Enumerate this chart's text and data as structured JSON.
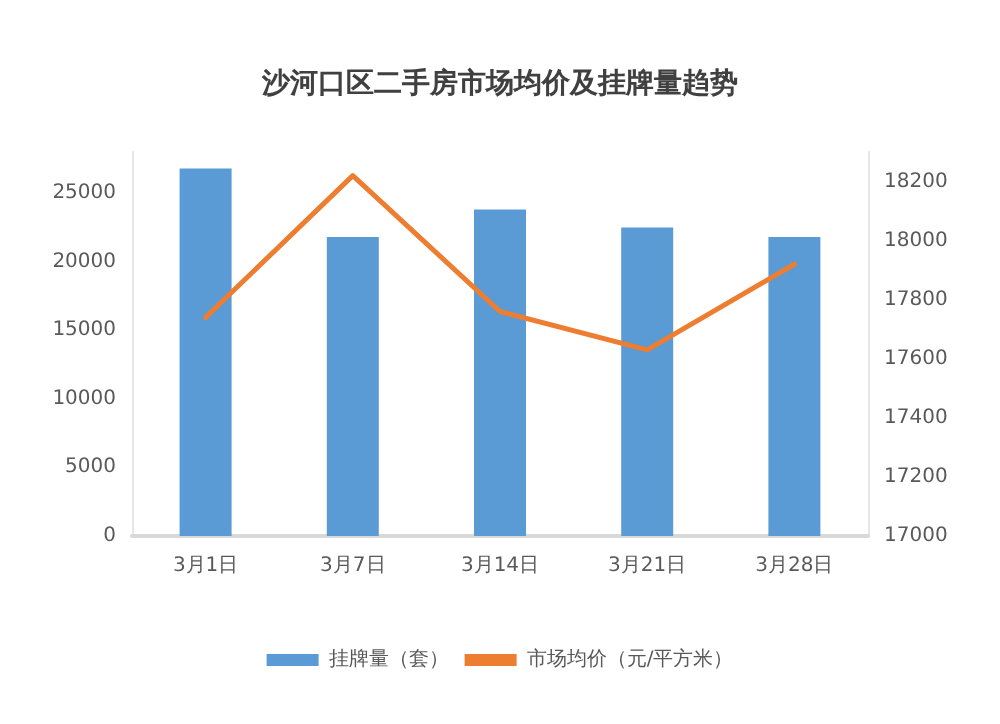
{
  "chart_data": {
    "type": "bar",
    "title": "沙河口区二手房市场均价及挂牌量趋势",
    "categories": [
      "3月1日",
      "3月7日",
      "3月14日",
      "3月21日",
      "3月28日"
    ],
    "series": [
      {
        "name": "挂牌量（套）",
        "color": "#5b9bd5",
        "values": [
          26800,
          21800,
          23800,
          22500,
          21800
        ]
      },
      {
        "name": "市场均价（元/平方米）",
        "type": "line",
        "axis": "y2",
        "color": "#ed7d31",
        "values": [
          17740,
          18220,
          17760,
          17630,
          17920
        ]
      }
    ],
    "ylim": [
      0,
      28000
    ],
    "yticks": [
      0,
      5000,
      10000,
      15000,
      20000,
      25000
    ],
    "y2lim": [
      17000,
      18300
    ],
    "y2ticks": [
      17000,
      17200,
      17400,
      17600,
      17800,
      18000,
      18200
    ],
    "grid": false,
    "legend": "bottom",
    "marker": "none",
    "line_style": "solid"
  }
}
